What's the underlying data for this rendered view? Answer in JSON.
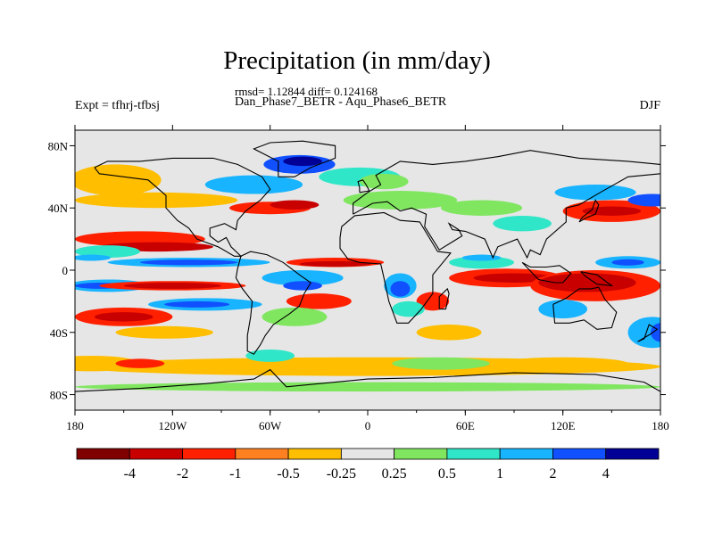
{
  "title": "Precipitation (in mm/day)",
  "stats_line": "rmsd= 1.12844 diff= 0.124168",
  "subtitle": "Dan_Phase7_BETR - Aqu_Phase6_BETR",
  "expt_label": "Expt = tfhrj-tfbsj",
  "season": "DJF",
  "lat_labels": [
    {
      "text": "80N",
      "lat": 80
    },
    {
      "text": "40N",
      "lat": 40
    },
    {
      "text": "0",
      "lat": 0
    },
    {
      "text": "40S",
      "lat": -40
    },
    {
      "text": "80S",
      "lat": -80
    }
  ],
  "lon_labels": [
    {
      "text": "180",
      "lon": -180
    },
    {
      "text": "120W",
      "lon": -120
    },
    {
      "text": "60W",
      "lon": -60
    },
    {
      "text": "0",
      "lon": 0
    },
    {
      "text": "60E",
      "lon": 60
    },
    {
      "text": "120E",
      "lon": 120
    },
    {
      "text": "180",
      "lon": 180
    }
  ],
  "colorbar": {
    "colors": [
      "#800000",
      "#c80000",
      "#ff2000",
      "#ff8020",
      "#ffbe00",
      "#e6e6e6",
      "#80e660",
      "#30e6c8",
      "#18b4ff",
      "#1050ff",
      "#000096"
    ],
    "labels": [
      "-4",
      "-2",
      "-1",
      "-0.5",
      "-0.25",
      "0.25",
      "0.5",
      "1",
      "2",
      "4"
    ]
  },
  "colors": {
    "map_background": "#e6e6e6",
    "coast": "#000000"
  }
}
